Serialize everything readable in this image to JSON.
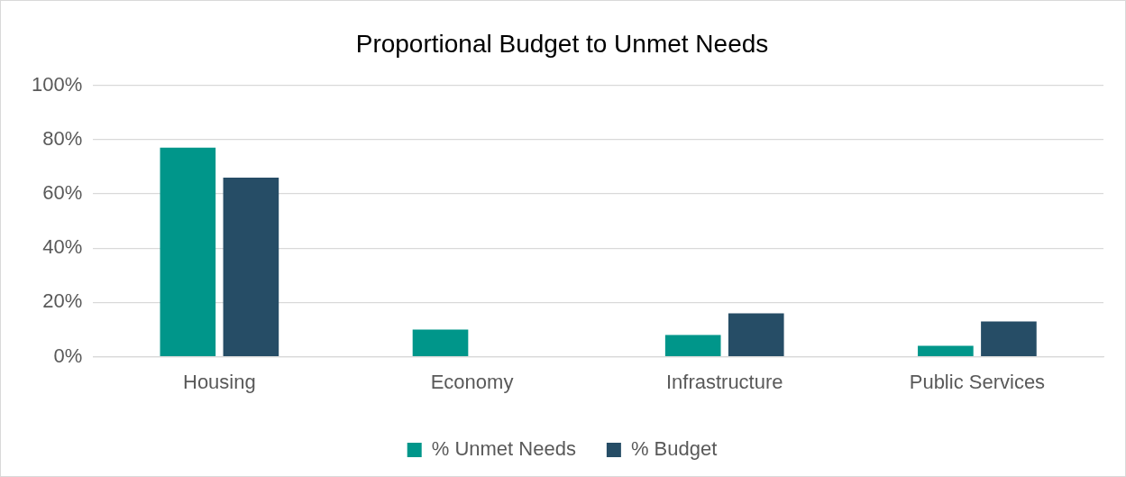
{
  "chart_data": {
    "type": "bar",
    "title": "Proportional Budget to Unmet Needs",
    "categories": [
      "Housing",
      "Economy",
      "Infrastructure",
      "Public Services"
    ],
    "series": [
      {
        "name": "% Unmet Needs",
        "color": "#00968a",
        "values": [
          77,
          10,
          8,
          4
        ]
      },
      {
        "name": "% Budget",
        "color": "#264d66",
        "values": [
          66,
          0,
          16,
          13
        ]
      }
    ],
    "ylim": [
      0,
      100
    ],
    "yticks": [
      {
        "value": 0,
        "label": "0%"
      },
      {
        "value": 20,
        "label": "20%"
      },
      {
        "value": 40,
        "label": "40%"
      },
      {
        "value": 60,
        "label": "60%"
      },
      {
        "value": 80,
        "label": "80%"
      },
      {
        "value": 100,
        "label": "100%"
      }
    ],
    "grid": "y",
    "legend": "bottom"
  }
}
